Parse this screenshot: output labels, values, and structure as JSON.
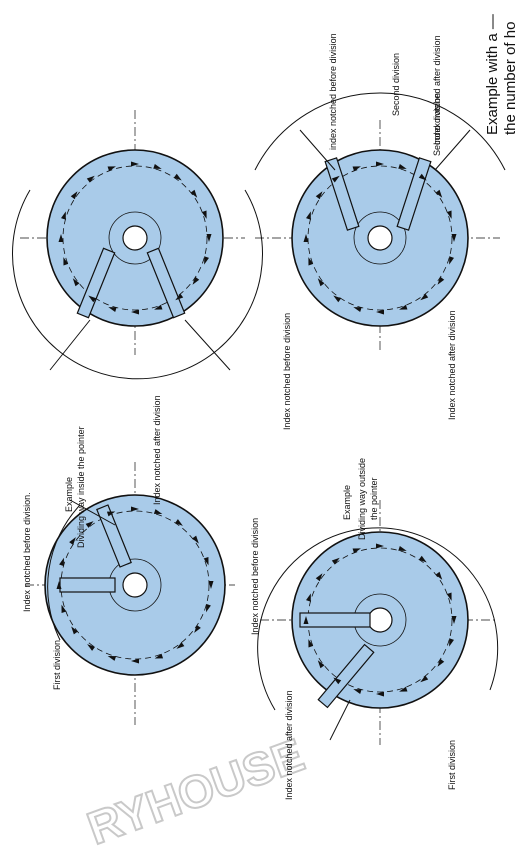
{
  "labels": {
    "index_before": "Index notched before division",
    "index_before_cut": "Index notched before division.",
    "index_after": "Index notched after division",
    "index_before_tr": "index notched before division",
    "index_after_tr": "Index notched after division",
    "first_division": "First division",
    "second_division": "Second division",
    "example": "Example",
    "dividing_inside": "Dividing way inside the pointer",
    "dividing_outside_1": "Dividing way outside",
    "dividing_outside_2": "the pointer",
    "caption_line1": "Example with a —",
    "caption_line2": "the number of ho"
  },
  "watermark": "RYHOUSE",
  "colors": {
    "disc": "#a9cbe9",
    "ink": "#111111",
    "background": "#ffffff"
  }
}
